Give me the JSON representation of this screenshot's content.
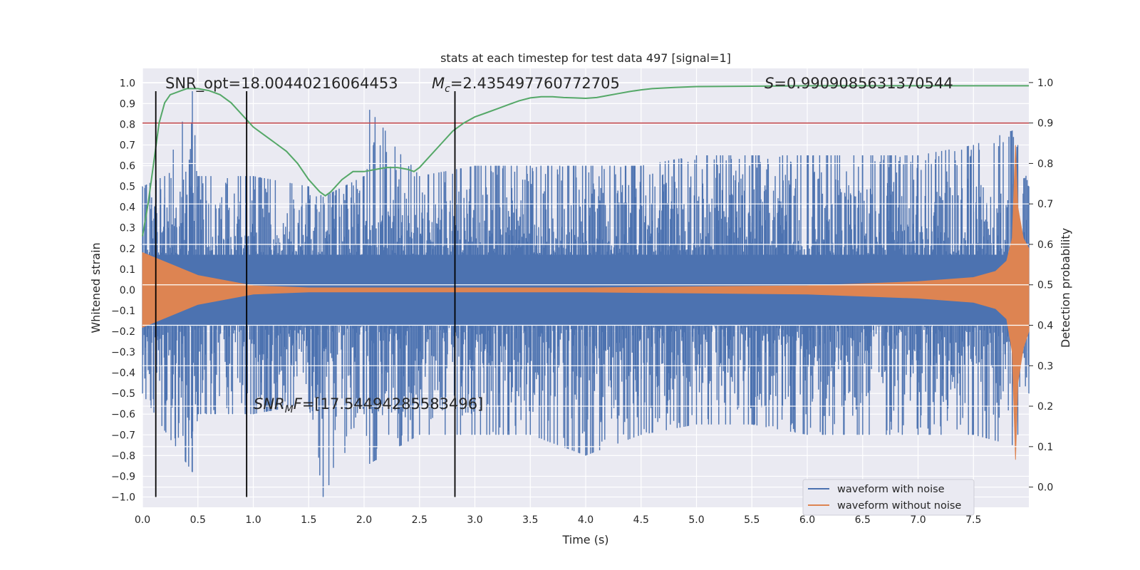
{
  "chart_data": {
    "type": "line",
    "title": "stats at each timestep for test data 497 [signal=1]",
    "xlabel": "Time (s)",
    "ylabel_left": "Whitened strain",
    "ylabel_right": "Detection probability",
    "xlim": [
      0,
      8
    ],
    "ylim_left": [
      -1.05,
      1.07
    ],
    "ylim_right": [
      -0.05,
      1.035
    ],
    "xticks": [
      "0.0",
      "0.5",
      "1.0",
      "1.5",
      "2.0",
      "2.5",
      "3.0",
      "3.5",
      "4.0",
      "4.5",
      "5.0",
      "5.5",
      "6.0",
      "6.5",
      "7.0",
      "7.5"
    ],
    "xtick_values": [
      0,
      0.5,
      1,
      1.5,
      2,
      2.5,
      3,
      3.5,
      4,
      4.5,
      5,
      5.5,
      6,
      6.5,
      7,
      7.5
    ],
    "yticks_left": [
      "−1.0",
      "−0.9",
      "−0.8",
      "−0.7",
      "−0.6",
      "−0.5",
      "−0.4",
      "−0.3",
      "−0.2",
      "−0.1",
      "0.0",
      "0.1",
      "0.2",
      "0.3",
      "0.4",
      "0.5",
      "0.6",
      "0.7",
      "0.8",
      "0.9",
      "1.0"
    ],
    "ytick_values_left": [
      -1,
      -0.9,
      -0.8,
      -0.7,
      -0.6,
      -0.5,
      -0.4,
      -0.3,
      -0.2,
      -0.1,
      0,
      0.1,
      0.2,
      0.3,
      0.4,
      0.5,
      0.6,
      0.7,
      0.8,
      0.9,
      1.0
    ],
    "yticks_right": [
      "0.0",
      "0.1",
      "0.2",
      "0.3",
      "0.4",
      "0.5",
      "0.6",
      "0.7",
      "0.8",
      "0.9",
      "1.0"
    ],
    "ytick_values_right": [
      0,
      0.1,
      0.2,
      0.3,
      0.4,
      0.5,
      0.6,
      0.7,
      0.8,
      0.9,
      1.0
    ],
    "grid": true,
    "legend_position": "bottom-right",
    "series": [
      {
        "name": "waveform with noise",
        "color": "#4c72b0",
        "axis": "left",
        "envelope_x": [
          0,
          0.2,
          0.45,
          0.5,
          1,
          1.5,
          1.63,
          2,
          2.05,
          2.5,
          3,
          3.5,
          4,
          4.5,
          5,
          5.5,
          6,
          6.5,
          7,
          7.5,
          7.85,
          7.9,
          8
        ],
        "envelope_upper": [
          0.5,
          0.55,
          0.96,
          0.55,
          0.55,
          0.5,
          0.45,
          0.55,
          0.87,
          0.55,
          0.6,
          0.6,
          0.6,
          0.6,
          0.65,
          0.65,
          0.65,
          0.65,
          0.65,
          0.7,
          0.77,
          0.7,
          0.5
        ],
        "envelope_lower": [
          -0.5,
          -0.68,
          -0.88,
          -0.6,
          -0.6,
          -0.55,
          -1.0,
          -0.6,
          -0.84,
          -0.7,
          -0.7,
          -0.7,
          -0.8,
          -0.7,
          -0.65,
          -0.65,
          -0.7,
          -0.7,
          -0.7,
          -0.7,
          -0.75,
          -0.7,
          -0.5
        ]
      },
      {
        "name": "waveform without noise",
        "color": "#dd8452",
        "axis": "left",
        "envelope_x": [
          0,
          0.5,
          1,
          1.5,
          2,
          3,
          4,
          5,
          6,
          7,
          7.5,
          7.7,
          7.8,
          7.85,
          7.88,
          7.9,
          7.95,
          8
        ],
        "envelope_upper": [
          0.18,
          0.07,
          0.02,
          0.01,
          0.01,
          0.01,
          0.01,
          0.015,
          0.02,
          0.04,
          0.06,
          0.09,
          0.14,
          0.25,
          0.7,
          0.4,
          0.25,
          0.2
        ],
        "envelope_lower": [
          -0.18,
          -0.07,
          -0.02,
          -0.01,
          -0.01,
          -0.01,
          -0.01,
          -0.015,
          -0.02,
          -0.04,
          -0.06,
          -0.09,
          -0.14,
          -0.3,
          -0.82,
          -0.45,
          -0.28,
          -0.2
        ]
      },
      {
        "name": "detection probability",
        "color": "#55a868",
        "axis": "right",
        "x": [
          0,
          0.05,
          0.1,
          0.15,
          0.2,
          0.25,
          0.3,
          0.35,
          0.4,
          0.5,
          0.6,
          0.7,
          0.8,
          0.9,
          1.0,
          1.1,
          1.2,
          1.3,
          1.4,
          1.5,
          1.6,
          1.65,
          1.7,
          1.8,
          1.9,
          2.0,
          2.1,
          2.2,
          2.3,
          2.4,
          2.45,
          2.5,
          2.6,
          2.7,
          2.8,
          2.9,
          3.0,
          3.1,
          3.2,
          3.3,
          3.4,
          3.5,
          3.6,
          3.7,
          3.8,
          3.9,
          4.0,
          4.1,
          4.2,
          4.3,
          4.4,
          4.5,
          4.6,
          4.8,
          5.0,
          5.5,
          6.0,
          6.5,
          7.0,
          7.5,
          8.0
        ],
        "y": [
          0.62,
          0.7,
          0.8,
          0.9,
          0.95,
          0.97,
          0.975,
          0.98,
          0.985,
          0.985,
          0.98,
          0.97,
          0.95,
          0.92,
          0.89,
          0.87,
          0.85,
          0.83,
          0.8,
          0.76,
          0.73,
          0.72,
          0.73,
          0.76,
          0.78,
          0.78,
          0.785,
          0.79,
          0.79,
          0.785,
          0.78,
          0.79,
          0.82,
          0.85,
          0.88,
          0.9,
          0.915,
          0.925,
          0.935,
          0.945,
          0.955,
          0.962,
          0.965,
          0.965,
          0.963,
          0.962,
          0.961,
          0.963,
          0.968,
          0.973,
          0.978,
          0.982,
          0.985,
          0.988,
          0.99,
          0.991,
          0.992,
          0.992,
          0.992,
          0.992,
          0.992
        ]
      }
    ],
    "threshold": {
      "axis": "right",
      "value": 0.9,
      "color": "#c44e52"
    },
    "vertical_markers": {
      "x": [
        0.12,
        0.94,
        2.82
      ],
      "ymin": -1.0,
      "ymax": 0.96,
      "color": "#000000"
    },
    "annotations": [
      {
        "text": "SNR_opt=18.00440216064453"
      },
      {
        "base": "M",
        "sub": "c",
        "rest": "=2.435497760772705"
      },
      {
        "base": "S",
        "rest": "=0.9909085631370544"
      },
      {
        "base": "SNR",
        "sub": "M",
        "rest": "F=[17.544942855834 96]"
      }
    ],
    "legend": [
      "waveform with noise",
      "waveform without noise"
    ]
  }
}
